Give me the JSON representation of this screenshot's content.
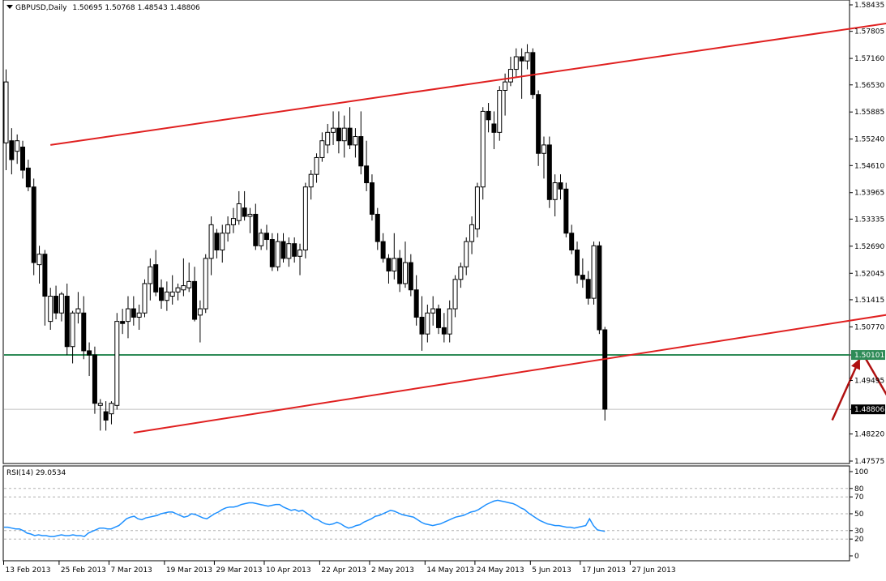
{
  "header": {
    "symbol": "GBPUSD,Daily",
    "ohlc": "1.50695 1.50768 1.48543 1.48806",
    "menu_icon": "triangle-down-icon"
  },
  "rsi_panel": {
    "label": "RSI(14) 29.0534"
  },
  "price_axis_labels": [
    "1.58435",
    "1.57805",
    "1.57160",
    "1.56530",
    "1.55885",
    "1.55240",
    "1.54610",
    "1.53965",
    "1.53335",
    "1.52690",
    "1.52045",
    "1.51415",
    "1.50770",
    "1.50101",
    "1.49495",
    "1.48806",
    "1.48220",
    "1.47575"
  ],
  "rsi_axis_labels": [
    "100",
    "80",
    "70",
    "50",
    "30",
    "20",
    "0"
  ],
  "date_labels": [
    "13 Feb 2013",
    "25 Feb 2013",
    "7 Mar 2013",
    "19 Mar 2013",
    "29 Mar 2013",
    "10 Apr 2013",
    "22 Apr 2013",
    "2 May 2013",
    "14 May 2013",
    "24 May 2013",
    "5 Jun 2013",
    "17 Jun 2013",
    "27 Jun 2013"
  ],
  "colors": {
    "bull_body": "#ffffff",
    "bear_body": "#000000",
    "channel": "#e02020",
    "support": "#2e8b57",
    "rsi": "#1e90ff",
    "arrow": "#b01010",
    "current_price_box": "#000000",
    "support_price_box": "#2e8b57"
  },
  "chart_data": {
    "type": "candlestick",
    "symbol": "GBPUSD",
    "timeframe": "Daily",
    "ylim": [
      1.47575,
      1.58435
    ],
    "support_level": 1.50101,
    "current_price": 1.48806,
    "candles": [
      {
        "o": 1.5515,
        "h": 1.569,
        "l": 1.545,
        "c": 1.566
      },
      {
        "o": 1.552,
        "h": 1.555,
        "l": 1.544,
        "c": 1.5475
      },
      {
        "o": 1.5495,
        "h": 1.5535,
        "l": 1.5465,
        "c": 1.552
      },
      {
        "o": 1.5505,
        "h": 1.552,
        "l": 1.543,
        "c": 1.545
      },
      {
        "o": 1.5455,
        "h": 1.5475,
        "l": 1.54,
        "c": 1.541
      },
      {
        "o": 1.541,
        "h": 1.543,
        "l": 1.52,
        "c": 1.523
      },
      {
        "o": 1.5225,
        "h": 1.527,
        "l": 1.518,
        "c": 1.525
      },
      {
        "o": 1.525,
        "h": 1.526,
        "l": 1.508,
        "c": 1.515
      },
      {
        "o": 1.509,
        "h": 1.517,
        "l": 1.507,
        "c": 1.515
      },
      {
        "o": 1.515,
        "h": 1.5175,
        "l": 1.5095,
        "c": 1.511
      },
      {
        "o": 1.511,
        "h": 1.516,
        "l": 1.509,
        "c": 1.5155
      },
      {
        "o": 1.515,
        "h": 1.518,
        "l": 1.501,
        "c": 1.503
      },
      {
        "o": 1.503,
        "h": 1.5115,
        "l": 1.499,
        "c": 1.511
      },
      {
        "o": 1.511,
        "h": 1.516,
        "l": 1.5085,
        "c": 1.512
      },
      {
        "o": 1.511,
        "h": 1.515,
        "l": 1.5,
        "c": 1.502
      },
      {
        "o": 1.502,
        "h": 1.504,
        "l": 1.496,
        "c": 1.501
      },
      {
        "o": 1.501,
        "h": 1.503,
        "l": 1.487,
        "c": 1.4895
      },
      {
        "o": 1.489,
        "h": 1.4905,
        "l": 1.483,
        "c": 1.4895
      },
      {
        "o": 1.4875,
        "h": 1.49,
        "l": 1.483,
        "c": 1.4855
      },
      {
        "o": 1.487,
        "h": 1.49,
        "l": 1.4845,
        "c": 1.4895
      },
      {
        "o": 1.489,
        "h": 1.511,
        "l": 1.488,
        "c": 1.509
      },
      {
        "o": 1.509,
        "h": 1.512,
        "l": 1.506,
        "c": 1.5085
      },
      {
        "o": 1.509,
        "h": 1.515,
        "l": 1.505,
        "c": 1.512
      },
      {
        "o": 1.512,
        "h": 1.515,
        "l": 1.508,
        "c": 1.51
      },
      {
        "o": 1.51,
        "h": 1.513,
        "l": 1.507,
        "c": 1.511
      },
      {
        "o": 1.511,
        "h": 1.519,
        "l": 1.51,
        "c": 1.518
      },
      {
        "o": 1.518,
        "h": 1.524,
        "l": 1.514,
        "c": 1.522
      },
      {
        "o": 1.5225,
        "h": 1.526,
        "l": 1.515,
        "c": 1.516
      },
      {
        "o": 1.517,
        "h": 1.519,
        "l": 1.512,
        "c": 1.514
      },
      {
        "o": 1.514,
        "h": 1.5185,
        "l": 1.5115,
        "c": 1.516
      },
      {
        "o": 1.515,
        "h": 1.52,
        "l": 1.513,
        "c": 1.516
      },
      {
        "o": 1.516,
        "h": 1.518,
        "l": 1.514,
        "c": 1.517
      },
      {
        "o": 1.5165,
        "h": 1.524,
        "l": 1.515,
        "c": 1.5175
      },
      {
        "o": 1.517,
        "h": 1.523,
        "l": 1.516,
        "c": 1.5185
      },
      {
        "o": 1.5185,
        "h": 1.522,
        "l": 1.509,
        "c": 1.5095
      },
      {
        "o": 1.5105,
        "h": 1.514,
        "l": 1.504,
        "c": 1.512
      },
      {
        "o": 1.512,
        "h": 1.525,
        "l": 1.511,
        "c": 1.524
      },
      {
        "o": 1.524,
        "h": 1.534,
        "l": 1.52,
        "c": 1.532
      },
      {
        "o": 1.53,
        "h": 1.531,
        "l": 1.524,
        "c": 1.526
      },
      {
        "o": 1.526,
        "h": 1.532,
        "l": 1.523,
        "c": 1.53
      },
      {
        "o": 1.53,
        "h": 1.534,
        "l": 1.528,
        "c": 1.532
      },
      {
        "o": 1.532,
        "h": 1.536,
        "l": 1.53,
        "c": 1.5335
      },
      {
        "o": 1.533,
        "h": 1.54,
        "l": 1.532,
        "c": 1.537
      },
      {
        "o": 1.536,
        "h": 1.54,
        "l": 1.533,
        "c": 1.534
      },
      {
        "o": 1.534,
        "h": 1.536,
        "l": 1.53,
        "c": 1.5345
      },
      {
        "o": 1.5345,
        "h": 1.537,
        "l": 1.526,
        "c": 1.527
      },
      {
        "o": 1.527,
        "h": 1.531,
        "l": 1.526,
        "c": 1.53
      },
      {
        "o": 1.53,
        "h": 1.532,
        "l": 1.526,
        "c": 1.5285
      },
      {
        "o": 1.5285,
        "h": 1.53,
        "l": 1.521,
        "c": 1.522
      },
      {
        "o": 1.522,
        "h": 1.53,
        "l": 1.521,
        "c": 1.528
      },
      {
        "o": 1.528,
        "h": 1.53,
        "l": 1.523,
        "c": 1.524
      },
      {
        "o": 1.524,
        "h": 1.529,
        "l": 1.522,
        "c": 1.5275
      },
      {
        "o": 1.5275,
        "h": 1.529,
        "l": 1.523,
        "c": 1.5245
      },
      {
        "o": 1.5245,
        "h": 1.5275,
        "l": 1.52,
        "c": 1.526
      },
      {
        "o": 1.526,
        "h": 1.542,
        "l": 1.524,
        "c": 1.541
      },
      {
        "o": 1.541,
        "h": 1.545,
        "l": 1.538,
        "c": 1.544
      },
      {
        "o": 1.544,
        "h": 1.549,
        "l": 1.542,
        "c": 1.548
      },
      {
        "o": 1.548,
        "h": 1.554,
        "l": 1.547,
        "c": 1.552
      },
      {
        "o": 1.551,
        "h": 1.556,
        "l": 1.549,
        "c": 1.554
      },
      {
        "o": 1.554,
        "h": 1.559,
        "l": 1.551,
        "c": 1.555
      },
      {
        "o": 1.555,
        "h": 1.559,
        "l": 1.549,
        "c": 1.552
      },
      {
        "o": 1.552,
        "h": 1.558,
        "l": 1.548,
        "c": 1.555
      },
      {
        "o": 1.555,
        "h": 1.56,
        "l": 1.55,
        "c": 1.551
      },
      {
        "o": 1.551,
        "h": 1.555,
        "l": 1.548,
        "c": 1.553
      },
      {
        "o": 1.553,
        "h": 1.559,
        "l": 1.544,
        "c": 1.546
      },
      {
        "o": 1.546,
        "h": 1.552,
        "l": 1.54,
        "c": 1.542
      },
      {
        "o": 1.542,
        "h": 1.544,
        "l": 1.533,
        "c": 1.5345
      },
      {
        "o": 1.5345,
        "h": 1.536,
        "l": 1.526,
        "c": 1.528
      },
      {
        "o": 1.528,
        "h": 1.53,
        "l": 1.523,
        "c": 1.524
      },
      {
        "o": 1.524,
        "h": 1.525,
        "l": 1.518,
        "c": 1.521
      },
      {
        "o": 1.521,
        "h": 1.53,
        "l": 1.519,
        "c": 1.524
      },
      {
        "o": 1.524,
        "h": 1.526,
        "l": 1.516,
        "c": 1.518
      },
      {
        "o": 1.518,
        "h": 1.528,
        "l": 1.517,
        "c": 1.523
      },
      {
        "o": 1.523,
        "h": 1.525,
        "l": 1.515,
        "c": 1.5165
      },
      {
        "o": 1.5165,
        "h": 1.52,
        "l": 1.508,
        "c": 1.51
      },
      {
        "o": 1.51,
        "h": 1.515,
        "l": 1.502,
        "c": 1.506
      },
      {
        "o": 1.506,
        "h": 1.513,
        "l": 1.504,
        "c": 1.511
      },
      {
        "o": 1.511,
        "h": 1.515,
        "l": 1.508,
        "c": 1.512
      },
      {
        "o": 1.512,
        "h": 1.513,
        "l": 1.506,
        "c": 1.5075
      },
      {
        "o": 1.5075,
        "h": 1.511,
        "l": 1.504,
        "c": 1.506
      },
      {
        "o": 1.506,
        "h": 1.514,
        "l": 1.504,
        "c": 1.512
      },
      {
        "o": 1.512,
        "h": 1.52,
        "l": 1.51,
        "c": 1.519
      },
      {
        "o": 1.519,
        "h": 1.523,
        "l": 1.517,
        "c": 1.522
      },
      {
        "o": 1.522,
        "h": 1.529,
        "l": 1.52,
        "c": 1.528
      },
      {
        "o": 1.528,
        "h": 1.534,
        "l": 1.525,
        "c": 1.532
      },
      {
        "o": 1.531,
        "h": 1.542,
        "l": 1.529,
        "c": 1.541
      },
      {
        "o": 1.541,
        "h": 1.56,
        "l": 1.538,
        "c": 1.559
      },
      {
        "o": 1.559,
        "h": 1.561,
        "l": 1.554,
        "c": 1.557
      },
      {
        "o": 1.556,
        "h": 1.559,
        "l": 1.55,
        "c": 1.554
      },
      {
        "o": 1.554,
        "h": 1.565,
        "l": 1.552,
        "c": 1.564
      },
      {
        "o": 1.564,
        "h": 1.568,
        "l": 1.558,
        "c": 1.566
      },
      {
        "o": 1.566,
        "h": 1.572,
        "l": 1.565,
        "c": 1.569
      },
      {
        "o": 1.569,
        "h": 1.574,
        "l": 1.567,
        "c": 1.572
      },
      {
        "o": 1.572,
        "h": 1.574,
        "l": 1.562,
        "c": 1.571
      },
      {
        "o": 1.571,
        "h": 1.575,
        "l": 1.569,
        "c": 1.573
      },
      {
        "o": 1.573,
        "h": 1.574,
        "l": 1.562,
        "c": 1.563
      },
      {
        "o": 1.563,
        "h": 1.564,
        "l": 1.546,
        "c": 1.549
      },
      {
        "o": 1.549,
        "h": 1.553,
        "l": 1.543,
        "c": 1.551
      },
      {
        "o": 1.551,
        "h": 1.553,
        "l": 1.536,
        "c": 1.538
      },
      {
        "o": 1.538,
        "h": 1.544,
        "l": 1.534,
        "c": 1.542
      },
      {
        "o": 1.542,
        "h": 1.544,
        "l": 1.538,
        "c": 1.5405
      },
      {
        "o": 1.5405,
        "h": 1.542,
        "l": 1.529,
        "c": 1.53
      },
      {
        "o": 1.53,
        "h": 1.532,
        "l": 1.525,
        "c": 1.526
      },
      {
        "o": 1.526,
        "h": 1.528,
        "l": 1.518,
        "c": 1.52
      },
      {
        "o": 1.52,
        "h": 1.524,
        "l": 1.517,
        "c": 1.519
      },
      {
        "o": 1.519,
        "h": 1.521,
        "l": 1.513,
        "c": 1.5145
      },
      {
        "o": 1.5145,
        "h": 1.528,
        "l": 1.513,
        "c": 1.527
      },
      {
        "o": 1.527,
        "h": 1.528,
        "l": 1.506,
        "c": 1.507
      },
      {
        "o": 1.507,
        "h": 1.5077,
        "l": 1.4854,
        "c": 1.4881
      }
    ],
    "channel_upper": [
      {
        "x": 8,
        "y": 1.551
      },
      {
        "x": 180,
        "y": 1.584
      }
    ],
    "channel_lower": [
      {
        "x": 23,
        "y": 1.4825
      },
      {
        "x": 190,
        "y": 1.517
      }
    ],
    "arrow_up": [
      {
        "x": 149,
        "y": 1.4855
      },
      {
        "x": 154,
        "y": 1.5002
      }
    ],
    "arrow_down": [
      {
        "x": 155,
        "y": 1.5002
      },
      {
        "x": 163,
        "y": 1.482
      }
    ],
    "rsi": {
      "ylim": [
        0,
        100
      ],
      "levels": [
        80,
        70,
        50,
        30,
        20
      ],
      "values": [
        34,
        34,
        33,
        32,
        32,
        30,
        27,
        26,
        24,
        25,
        24,
        24,
        23,
        23,
        24,
        25,
        24,
        24,
        25,
        24,
        24,
        23,
        27,
        29,
        31,
        33,
        33,
        32,
        32,
        34,
        36,
        40,
        44,
        46,
        47,
        44,
        43,
        45,
        46,
        47,
        48,
        50,
        51,
        52,
        52,
        50,
        48,
        46,
        47,
        50,
        49,
        47,
        45,
        44,
        47,
        50,
        52,
        55,
        57,
        58,
        58,
        59,
        61,
        62,
        63,
        63,
        62,
        61,
        60,
        59,
        60,
        61,
        61,
        58,
        56,
        54,
        55,
        53,
        54,
        51,
        48,
        44,
        43,
        40,
        38,
        37,
        38,
        40,
        38,
        35,
        33,
        34,
        36,
        37,
        40,
        42,
        44,
        47,
        48,
        50,
        52,
        54,
        53,
        51,
        49,
        48,
        47,
        46,
        43,
        40,
        38,
        37,
        36,
        37,
        38,
        40,
        42,
        44,
        46,
        47,
        48,
        50,
        52,
        53,
        55,
        58,
        61,
        63,
        65,
        66,
        65,
        64,
        63,
        62,
        60,
        57,
        55,
        51,
        48,
        45,
        42,
        40,
        38,
        37,
        36,
        36,
        35,
        34,
        34,
        33,
        34,
        35,
        36,
        44,
        36,
        31,
        30,
        29
      ]
    },
    "x_ticks": [
      0,
      10,
      19,
      29,
      38,
      47,
      57,
      66,
      76,
      85,
      95,
      104,
      113
    ]
  }
}
